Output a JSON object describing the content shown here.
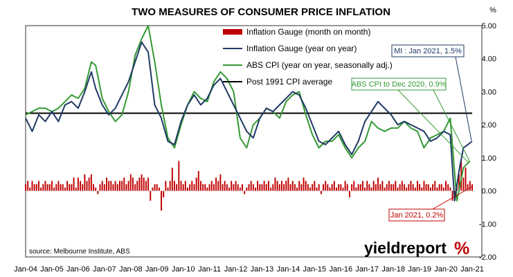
{
  "chart_data": {
    "type": "bar+line",
    "title": "TWO MEASURES OF CONSUMER PRICE INFLATION",
    "unit_label": "%",
    "ylim": [
      -2,
      5
    ],
    "y_ticks": [
      "-2.00",
      "-1.00",
      "0.00",
      "1.00",
      "2.00",
      "3.00",
      "4.00",
      "5.00"
    ],
    "x_ticks": [
      "Jan-04",
      "Jan-05",
      "Jan-06",
      "Jan-07",
      "Jan-08",
      "Jan-09",
      "Jan-10",
      "Jan-11",
      "Jan-12",
      "Jan-13",
      "Jan-14",
      "Jan-15",
      "Jan-16",
      "Jan-17",
      "Jan-18",
      "Jan-19",
      "Jan-20",
      "Jan-21"
    ],
    "x_start": "2004-01",
    "x_end": "2021-01",
    "grid": false,
    "legend_position": "top-center",
    "reference_line": {
      "name": "Post 1991 CPI average",
      "value": 2.35
    },
    "series": [
      {
        "name": "Inflation Gauge (month on month)",
        "kind": "bar",
        "color": "#c00000",
        "frequency": "monthly",
        "start": "2004-01",
        "values": [
          0.2,
          0.3,
          0.1,
          0.3,
          0.2,
          0.2,
          0.3,
          0.1,
          0.2,
          0.3,
          0.2,
          0.2,
          0.3,
          0.1,
          0.2,
          0.3,
          0.2,
          0.2,
          0.1,
          0.3,
          0.2,
          0.2,
          0.4,
          0.1,
          0.4,
          0.3,
          0.2,
          0.5,
          0.3,
          0.4,
          0.5,
          0.2,
          0.1,
          -0.1,
          0.2,
          0.3,
          0.2,
          0.4,
          0.3,
          0.3,
          0.2,
          0.3,
          0.2,
          0.3,
          0.3,
          0.4,
          0.2,
          0.3,
          0.5,
          0.4,
          0.2,
          0.3,
          0.4,
          0.5,
          0.4,
          0.3,
          0.4,
          -0.3,
          0.1,
          0.2,
          0.2,
          0.1,
          -0.6,
          -0.2,
          0.3,
          0.1,
          0.3,
          0.7,
          0.3,
          0.2,
          0.9,
          0.3,
          0.2,
          0.3,
          0.1,
          0.2,
          0.3,
          0.2,
          0.4,
          0.6,
          0.3,
          0.2,
          0.2,
          0.1,
          0.2,
          0.3,
          0.2,
          0.4,
          0.3,
          0.5,
          0.2,
          0.3,
          0.2,
          0.1,
          0.3,
          0.2,
          0.3,
          0.2,
          0.1,
          0.2,
          -0.1,
          0.1,
          0.2,
          0.3,
          0.2,
          0.1,
          0.3,
          0.2,
          0.2,
          0.3,
          0.2,
          0.3,
          0.1,
          0.2,
          0.4,
          0.3,
          0.2,
          0.3,
          0.2,
          0.3,
          0.4,
          0.2,
          0.3,
          0.2,
          0.1,
          0.3,
          0.2,
          0.4,
          0.3,
          0.2,
          0.1,
          0.2,
          0.3,
          0.1,
          0.2,
          -0.1,
          0.2,
          0.3,
          0.2,
          0.1,
          0.2,
          0.3,
          0.1,
          0.2,
          0.2,
          0.1,
          0.3,
          0.2,
          -0.2,
          0.2,
          0.3,
          0.1,
          0.2,
          0.2,
          0.3,
          0.1,
          0.3,
          0.2,
          0.1,
          0.3,
          0.2,
          0.4,
          0.2,
          0.3,
          0.1,
          0.2,
          0.3,
          0.2,
          0.2,
          0.3,
          0.1,
          0.2,
          0.3,
          0.2,
          0.1,
          0.2,
          0.3,
          0.2,
          0.1,
          0.3,
          0.2,
          0.1,
          0.3,
          0.2,
          0.2,
          0.1,
          0.2,
          0.3,
          0.1,
          0.2,
          0.2,
          0.1,
          0.3,
          0.2,
          0.1,
          -0.3,
          -0.1,
          0.2,
          0.5,
          0.9,
          0.4,
          0.7,
          0.2,
          0.3,
          0.2
        ]
      },
      {
        "name": "Inflation Gauge (year on year)",
        "kind": "line",
        "color": "#1f3864",
        "points": [
          [
            "2004-01",
            2.2
          ],
          [
            "2004-04",
            1.8
          ],
          [
            "2004-07",
            2.3
          ],
          [
            "2004-10",
            2.1
          ],
          [
            "2005-01",
            2.4
          ],
          [
            "2005-04",
            2.1
          ],
          [
            "2005-07",
            2.6
          ],
          [
            "2005-10",
            2.7
          ],
          [
            "2006-01",
            2.5
          ],
          [
            "2006-04",
            3.0
          ],
          [
            "2006-07",
            3.6
          ],
          [
            "2006-09",
            3.1
          ],
          [
            "2006-12",
            2.6
          ],
          [
            "2007-03",
            2.3
          ],
          [
            "2007-06",
            2.5
          ],
          [
            "2007-09",
            2.9
          ],
          [
            "2007-12",
            3.3
          ],
          [
            "2008-03",
            3.9
          ],
          [
            "2008-06",
            4.5
          ],
          [
            "2008-09",
            4.2
          ],
          [
            "2008-12",
            2.6
          ],
          [
            "2009-03",
            2.2
          ],
          [
            "2009-06",
            1.5
          ],
          [
            "2009-09",
            1.4
          ],
          [
            "2009-12",
            2.1
          ],
          [
            "2010-03",
            2.6
          ],
          [
            "2010-06",
            2.9
          ],
          [
            "2010-09",
            2.6
          ],
          [
            "2010-12",
            2.8
          ],
          [
            "2011-03",
            3.2
          ],
          [
            "2011-06",
            3.4
          ],
          [
            "2011-09",
            3.0
          ],
          [
            "2011-12",
            2.6
          ],
          [
            "2012-03",
            2.2
          ],
          [
            "2012-06",
            1.8
          ],
          [
            "2012-09",
            1.6
          ],
          [
            "2012-12",
            2.2
          ],
          [
            "2013-03",
            2.5
          ],
          [
            "2013-06",
            2.4
          ],
          [
            "2013-09",
            2.6
          ],
          [
            "2013-12",
            2.8
          ],
          [
            "2014-03",
            3.0
          ],
          [
            "2014-06",
            2.9
          ],
          [
            "2014-09",
            2.5
          ],
          [
            "2014-12",
            2.0
          ],
          [
            "2015-03",
            1.5
          ],
          [
            "2015-06",
            1.4
          ],
          [
            "2015-09",
            1.6
          ],
          [
            "2015-12",
            1.8
          ],
          [
            "2016-03",
            1.4
          ],
          [
            "2016-06",
            1.1
          ],
          [
            "2016-09",
            1.5
          ],
          [
            "2016-12",
            2.1
          ],
          [
            "2017-03",
            2.4
          ],
          [
            "2017-06",
            2.7
          ],
          [
            "2017-09",
            2.5
          ],
          [
            "2017-12",
            2.3
          ],
          [
            "2018-03",
            2.0
          ],
          [
            "2018-06",
            2.1
          ],
          [
            "2018-09",
            2.0
          ],
          [
            "2018-12",
            1.9
          ],
          [
            "2019-03",
            1.8
          ],
          [
            "2019-06",
            1.5
          ],
          [
            "2019-09",
            1.6
          ],
          [
            "2019-12",
            1.8
          ],
          [
            "2020-03",
            1.7
          ],
          [
            "2020-05",
            -0.3
          ],
          [
            "2020-07",
            0.6
          ],
          [
            "2020-09",
            1.3
          ],
          [
            "2020-11",
            1.4
          ],
          [
            "2021-01",
            1.5
          ]
        ]
      },
      {
        "name": "ABS CPI (year on year, seasonally adj.)",
        "kind": "line",
        "color": "#339933",
        "points": [
          [
            "2004-01",
            2.3
          ],
          [
            "2004-04",
            2.4
          ],
          [
            "2004-07",
            2.5
          ],
          [
            "2004-10",
            2.5
          ],
          [
            "2005-01",
            2.4
          ],
          [
            "2005-04",
            2.5
          ],
          [
            "2005-07",
            2.7
          ],
          [
            "2005-10",
            2.9
          ],
          [
            "2006-01",
            2.8
          ],
          [
            "2006-04",
            3.1
          ],
          [
            "2006-07",
            3.9
          ],
          [
            "2006-09",
            3.8
          ],
          [
            "2006-12",
            2.8
          ],
          [
            "2007-03",
            2.4
          ],
          [
            "2007-06",
            2.1
          ],
          [
            "2007-09",
            2.3
          ],
          [
            "2007-12",
            3.0
          ],
          [
            "2008-03",
            4.1
          ],
          [
            "2008-06",
            4.6
          ],
          [
            "2008-09",
            5.0
          ],
          [
            "2008-12",
            3.9
          ],
          [
            "2009-03",
            2.6
          ],
          [
            "2009-06",
            1.6
          ],
          [
            "2009-09",
            1.3
          ],
          [
            "2009-12",
            2.0
          ],
          [
            "2010-03",
            2.6
          ],
          [
            "2010-06",
            3.0
          ],
          [
            "2010-09",
            2.8
          ],
          [
            "2010-12",
            2.7
          ],
          [
            "2011-03",
            3.3
          ],
          [
            "2011-06",
            3.6
          ],
          [
            "2011-09",
            3.4
          ],
          [
            "2011-12",
            3.0
          ],
          [
            "2012-03",
            1.6
          ],
          [
            "2012-06",
            1.3
          ],
          [
            "2012-09",
            2.0
          ],
          [
            "2012-12",
            2.2
          ],
          [
            "2013-03",
            2.5
          ],
          [
            "2013-06",
            2.4
          ],
          [
            "2013-09",
            2.2
          ],
          [
            "2013-12",
            2.7
          ],
          [
            "2014-03",
            2.9
          ],
          [
            "2014-06",
            3.0
          ],
          [
            "2014-09",
            2.3
          ],
          [
            "2014-12",
            1.7
          ],
          [
            "2015-03",
            1.3
          ],
          [
            "2015-06",
            1.5
          ],
          [
            "2015-09",
            1.5
          ],
          [
            "2015-12",
            1.7
          ],
          [
            "2016-03",
            1.3
          ],
          [
            "2016-06",
            1.0
          ],
          [
            "2016-09",
            1.3
          ],
          [
            "2016-12",
            1.5
          ],
          [
            "2017-03",
            2.1
          ],
          [
            "2017-06",
            1.9
          ],
          [
            "2017-09",
            1.8
          ],
          [
            "2017-12",
            1.9
          ],
          [
            "2018-03",
            1.9
          ],
          [
            "2018-06",
            2.1
          ],
          [
            "2018-09",
            1.9
          ],
          [
            "2018-12",
            1.8
          ],
          [
            "2019-03",
            1.3
          ],
          [
            "2019-06",
            1.6
          ],
          [
            "2019-09",
            1.7
          ],
          [
            "2019-12",
            1.8
          ],
          [
            "2020-03",
            2.2
          ],
          [
            "2020-06",
            -0.3
          ],
          [
            "2020-09",
            0.7
          ],
          [
            "2020-12",
            0.9
          ]
        ]
      }
    ],
    "annotations": [
      {
        "text": "MI : Jan 2021, 1.5%",
        "color": "#1f3864"
      },
      {
        "text": "ABS CPI to Dec 2020, 0.9%",
        "color": "#339933"
      },
      {
        "text": "Jan 2021, 0.2%",
        "color": "#c00000"
      }
    ],
    "source_note": "source: Melbourne Institute, ABS"
  },
  "brand": {
    "name": "yieldreport",
    "symbol": "%"
  }
}
